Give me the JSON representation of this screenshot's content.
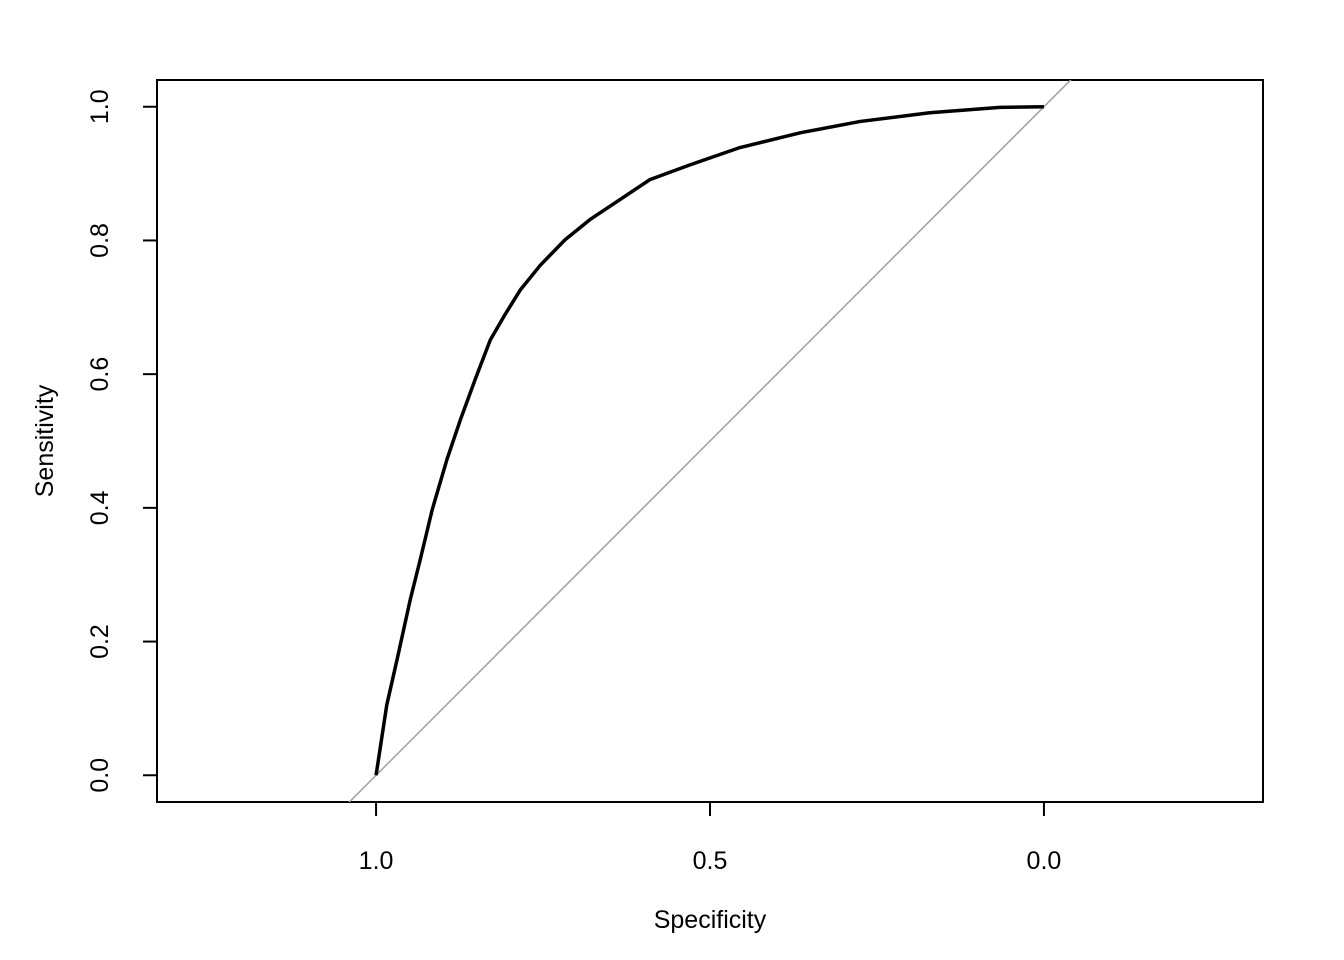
{
  "chart_data": {
    "type": "line",
    "x_label": "Specificity",
    "y_label": "Sensitivity",
    "x": [
      1.0,
      0.984,
      0.967,
      0.949,
      0.934,
      0.916,
      0.894,
      0.874,
      0.852,
      0.829,
      0.807,
      0.784,
      0.754,
      0.717,
      0.68,
      0.635,
      0.59,
      0.53,
      0.455,
      0.365,
      0.275,
      0.171,
      0.066,
      0.0
    ],
    "values": [
      0.0,
      0.105,
      0.18,
      0.262,
      0.322,
      0.397,
      0.472,
      0.531,
      0.591,
      0.651,
      0.689,
      0.726,
      0.763,
      0.801,
      0.831,
      0.861,
      0.891,
      0.913,
      0.939,
      0.961,
      0.978,
      0.991,
      0.999,
      1.0
    ],
    "color": "#000000",
    "xlim": [
      1.328,
      -0.328
    ],
    "ylim": [
      -0.04,
      1.04
    ],
    "xticks": [
      {
        "value": 1.0,
        "label": "1.0"
      },
      {
        "value": 0.5,
        "label": "0.5"
      },
      {
        "value": 0.0,
        "label": "0.0"
      }
    ],
    "yticks": [
      {
        "value": 0.0,
        "label": "0.0"
      },
      {
        "value": 0.2,
        "label": "0.2"
      },
      {
        "value": 0.4,
        "label": "0.4"
      },
      {
        "value": 0.6,
        "label": "0.6"
      },
      {
        "value": 0.8,
        "label": "0.8"
      },
      {
        "value": 1.0,
        "label": "1.0"
      }
    ],
    "reference_line": {
      "intercept": 1,
      "slope": -1,
      "color": "#a0a0a0"
    }
  }
}
